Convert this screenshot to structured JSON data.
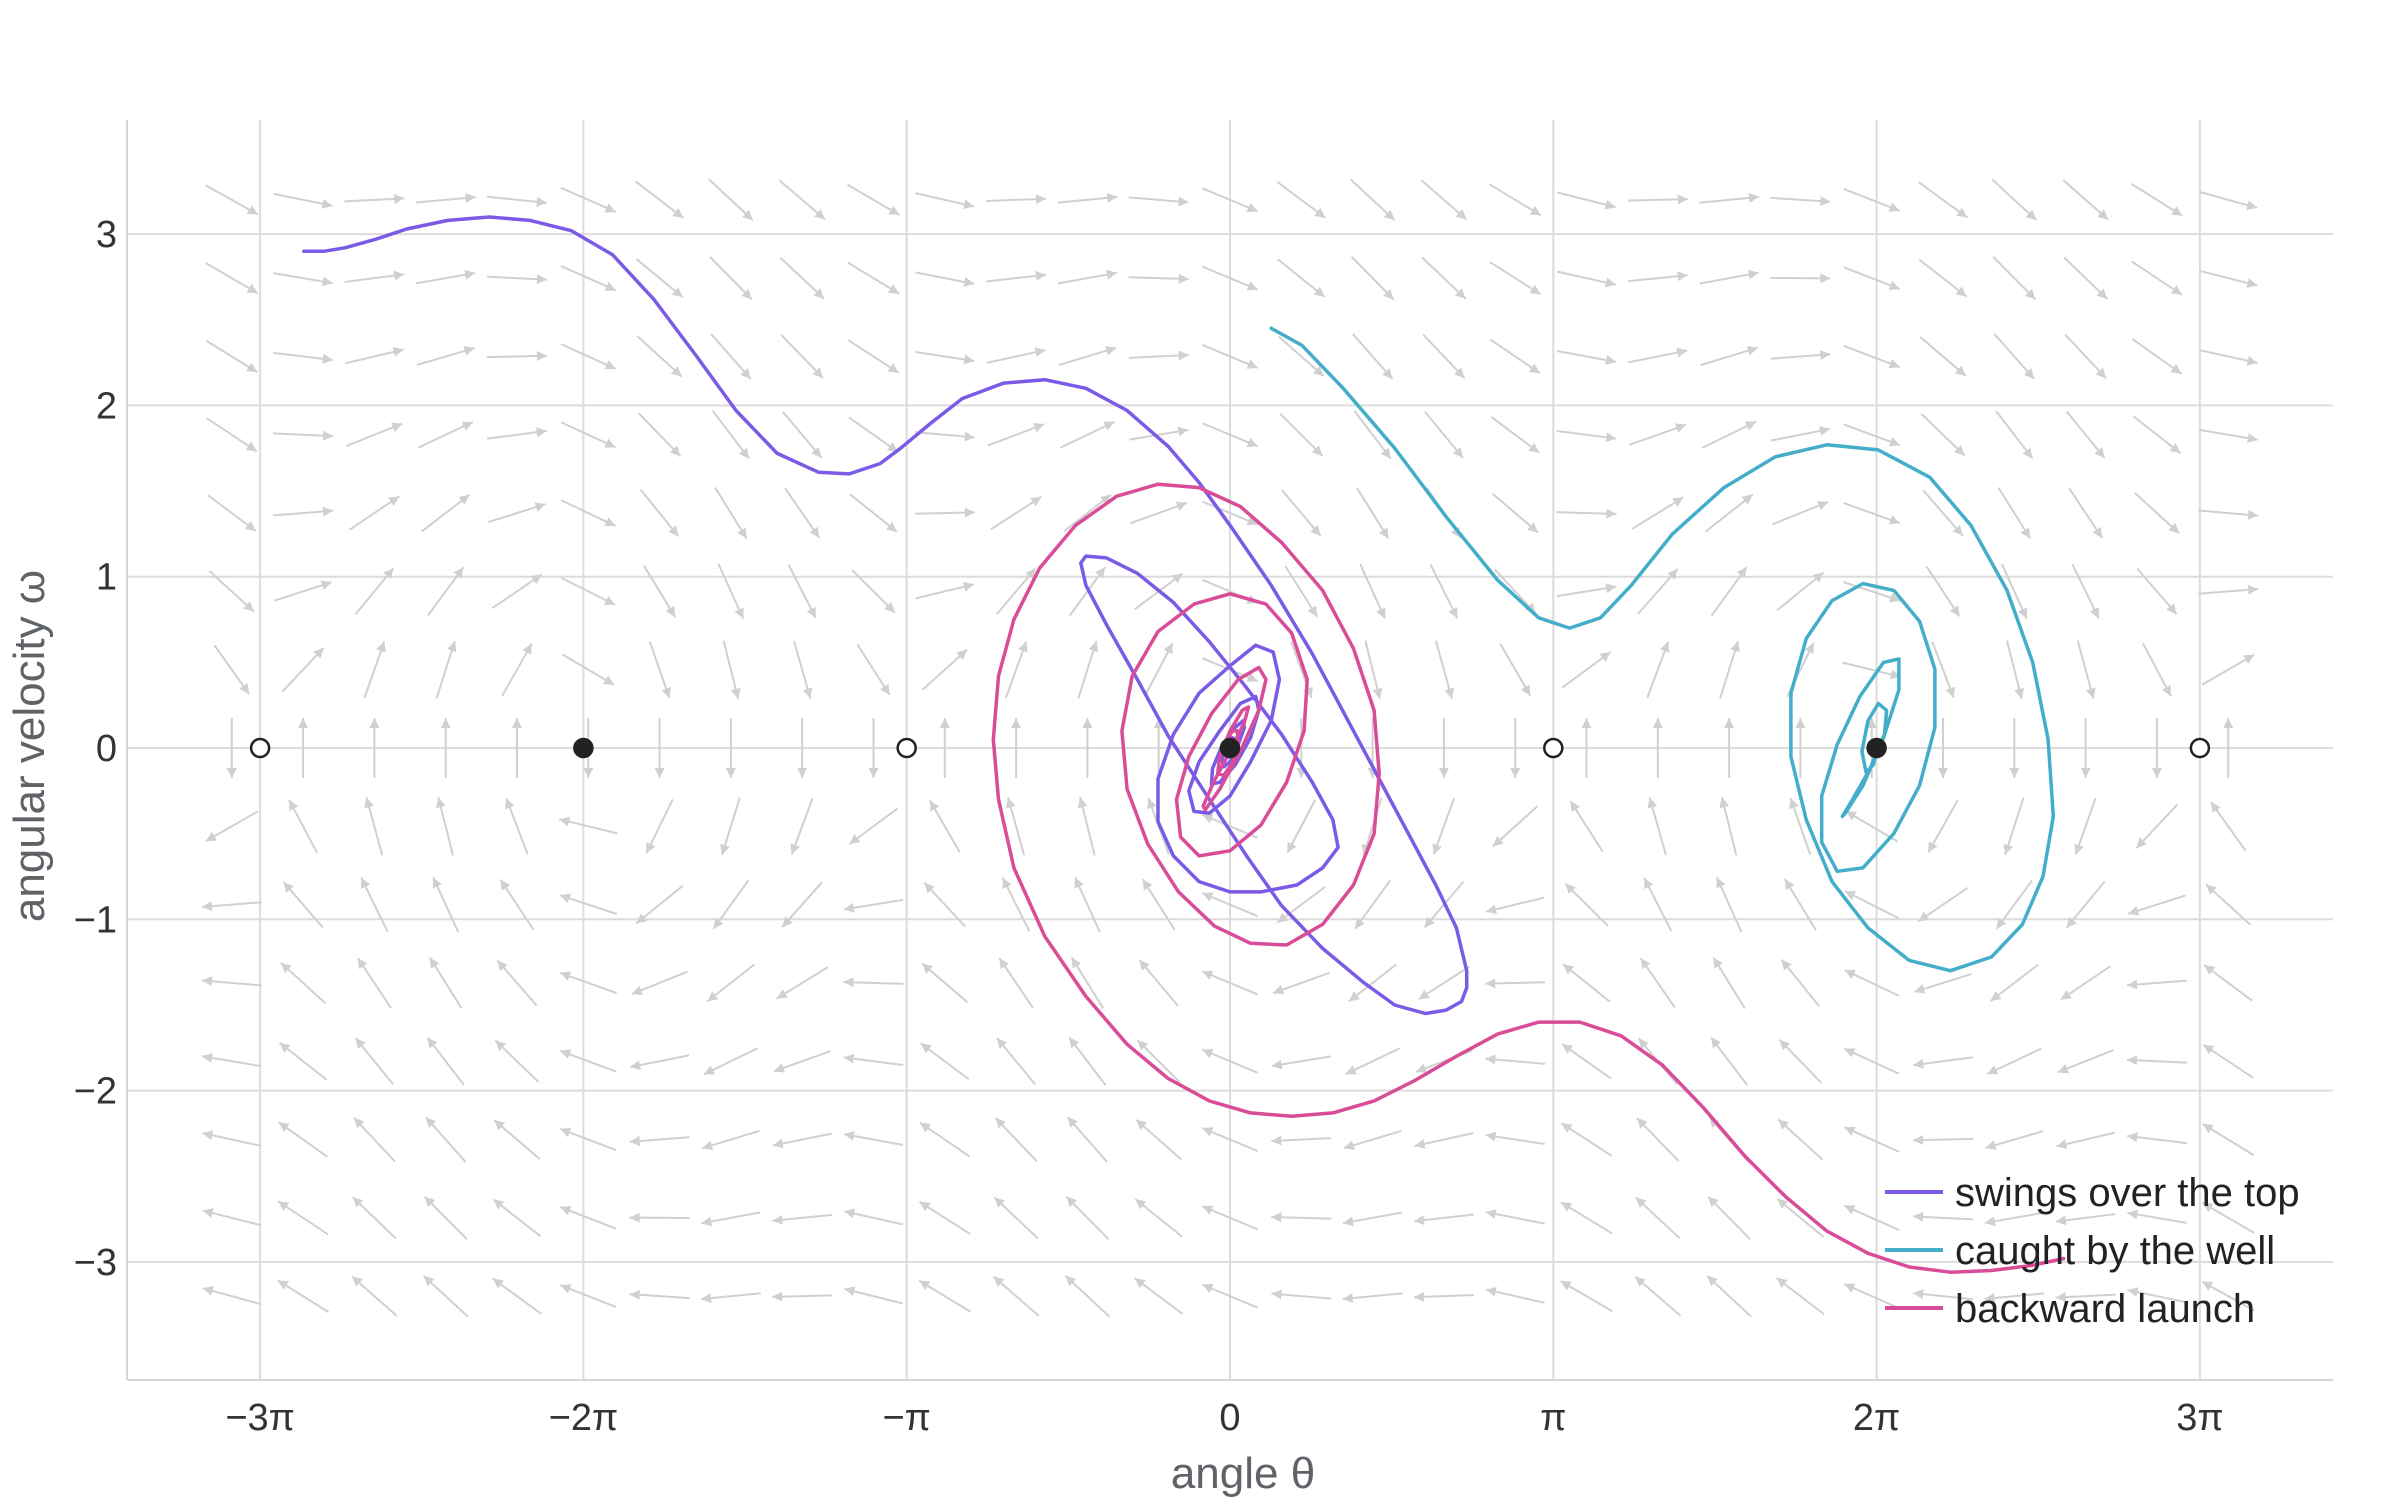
{
  "chart_data": {
    "type": "line",
    "xlabel": "angle θ",
    "ylabel": "angular velocity ω",
    "xlim": [
      -10.2,
      12.6
    ],
    "ylim": [
      -3.65,
      3.65
    ],
    "x_ticks": [
      {
        "value": -9.4248,
        "label": "−3π"
      },
      {
        "value": -6.2832,
        "label": "−2π"
      },
      {
        "value": -3.1416,
        "label": "−π"
      },
      {
        "value": 0,
        "label": "0"
      },
      {
        "value": 3.1416,
        "label": "π"
      },
      {
        "value": 6.2832,
        "label": "2π"
      },
      {
        "value": 9.4248,
        "label": "3π"
      }
    ],
    "y_ticks": [
      {
        "value": 3,
        "label": "3"
      },
      {
        "value": 2,
        "label": "2"
      },
      {
        "value": 1,
        "label": "1"
      },
      {
        "value": 0,
        "label": "0"
      },
      {
        "value": -1,
        "label": "−1"
      },
      {
        "value": -2,
        "label": "−2"
      },
      {
        "value": -3,
        "label": "−3"
      }
    ],
    "grid": true,
    "legend_position": "bottom-right",
    "vector_field": {
      "description": "direction field of the damped pendulum",
      "x_range": [
        -9.7,
        9.7
      ],
      "y_range": [
        -3.2,
        3.2
      ],
      "color": "#d0d0d0"
    },
    "equilibria": [
      {
        "x": -9.4248,
        "y": 0,
        "kind": "unstable"
      },
      {
        "x": -6.2832,
        "y": 0,
        "kind": "stable"
      },
      {
        "x": -3.1416,
        "y": 0,
        "kind": "unstable"
      },
      {
        "x": 0,
        "y": 0,
        "kind": "stable"
      },
      {
        "x": 3.1416,
        "y": 0,
        "kind": "unstable"
      },
      {
        "x": 6.2832,
        "y": 0,
        "kind": "stable"
      },
      {
        "x": 9.4248,
        "y": 0,
        "kind": "unstable"
      }
    ],
    "series": [
      {
        "name": "swings over the top",
        "color": "#7b5be6",
        "x": [
          -9.0,
          -8.8,
          -8.6,
          -8.3,
          -8.0,
          -7.6,
          -7.2,
          -6.8,
          -6.4,
          -6.0,
          -5.6,
          -5.2,
          -4.8,
          -4.4,
          -4.0,
          -3.7,
          -3.4,
          -3.2,
          -2.9,
          -2.6,
          -2.2,
          -1.8,
          -1.4,
          -1.0,
          -0.6,
          -0.3,
          0.0,
          0.4,
          0.8,
          1.2,
          1.6,
          2.0,
          2.2,
          2.3,
          2.3,
          2.25,
          2.1,
          1.9,
          1.6,
          1.3,
          0.9,
          0.5,
          0.15,
          -0.2,
          -0.6,
          -0.9,
          -1.2,
          -1.4,
          -1.45,
          -1.4,
          -1.2,
          -0.9,
          -0.55,
          -0.2,
          0.15,
          0.5,
          0.8,
          1.0,
          1.05,
          0.9,
          0.65,
          0.3,
          0.0,
          -0.3,
          -0.55,
          -0.7,
          -0.7,
          -0.55,
          -0.3,
          0.0,
          0.25,
          0.42,
          0.48,
          0.4,
          0.2,
          0.0,
          -0.2,
          -0.35,
          -0.4,
          -0.3,
          -0.1,
          0.1,
          0.25,
          0.28,
          0.2,
          0.05,
          -0.1,
          -0.18,
          -0.17,
          -0.08,
          0.05,
          0.13,
          0.14,
          0.08,
          0.0,
          -0.06,
          -0.08,
          -0.04,
          0.02,
          0.05,
          0.04,
          0.0
        ],
        "y": [
          2.9,
          2.9,
          2.92,
          2.97,
          3.03,
          3.08,
          3.1,
          3.08,
          3.02,
          2.88,
          2.62,
          2.3,
          1.97,
          1.72,
          1.61,
          1.6,
          1.66,
          1.75,
          1.9,
          2.04,
          2.13,
          2.15,
          2.1,
          1.97,
          1.76,
          1.55,
          1.3,
          0.95,
          0.55,
          0.1,
          -0.35,
          -0.8,
          -1.05,
          -1.3,
          -1.4,
          -1.48,
          -1.53,
          -1.55,
          -1.5,
          -1.37,
          -1.17,
          -0.92,
          -0.62,
          -0.3,
          0.07,
          0.4,
          0.72,
          0.95,
          1.08,
          1.12,
          1.11,
          1.02,
          0.85,
          0.62,
          0.36,
          0.08,
          -0.2,
          -0.42,
          -0.58,
          -0.7,
          -0.8,
          -0.84,
          -0.84,
          -0.78,
          -0.63,
          -0.43,
          -0.18,
          0.08,
          0.32,
          0.48,
          0.6,
          0.56,
          0.4,
          0.16,
          -0.08,
          -0.28,
          -0.38,
          -0.37,
          -0.25,
          -0.08,
          0.1,
          0.26,
          0.3,
          0.22,
          0.06,
          -0.1,
          -0.2,
          -0.21,
          -0.12,
          0.01,
          0.12,
          0.16,
          0.12,
          0.02,
          -0.08,
          -0.11,
          -0.07,
          0.01,
          0.06,
          0.05,
          0.02,
          0.0
        ]
      },
      {
        "name": "caught by the well",
        "color": "#44adc9",
        "x": [
          0.4,
          0.7,
          1.1,
          1.6,
          2.1,
          2.6,
          3.0,
          3.3,
          3.6,
          3.9,
          4.3,
          4.8,
          5.3,
          5.8,
          6.3,
          6.8,
          7.2,
          7.55,
          7.8,
          7.95,
          8.0,
          7.9,
          7.7,
          7.4,
          7.0,
          6.6,
          6.2,
          5.85,
          5.6,
          5.45,
          5.45,
          5.6,
          5.85,
          6.15,
          6.45,
          6.7,
          6.85,
          6.85,
          6.7,
          6.45,
          6.15,
          5.9,
          5.75,
          5.75,
          5.9,
          6.12,
          6.35,
          6.5,
          6.5,
          6.35,
          6.15,
          5.98,
          5.95,
          6.05,
          6.22,
          6.36,
          6.38,
          6.3,
          6.2,
          6.14,
          6.18,
          6.25,
          6.3,
          6.28
        ],
        "y": [
          2.45,
          2.35,
          2.1,
          1.75,
          1.35,
          0.98,
          0.76,
          0.7,
          0.76,
          0.95,
          1.25,
          1.52,
          1.7,
          1.77,
          1.74,
          1.58,
          1.3,
          0.92,
          0.5,
          0.05,
          -0.4,
          -0.75,
          -1.03,
          -1.22,
          -1.3,
          -1.24,
          -1.05,
          -0.78,
          -0.42,
          -0.05,
          0.32,
          0.64,
          0.86,
          0.96,
          0.92,
          0.74,
          0.46,
          0.12,
          -0.22,
          -0.5,
          -0.7,
          -0.72,
          -0.55,
          -0.28,
          0.02,
          0.3,
          0.5,
          0.52,
          0.34,
          0.06,
          -0.22,
          -0.38,
          -0.4,
          -0.3,
          -0.12,
          0.08,
          0.22,
          0.26,
          0.16,
          -0.02,
          -0.14,
          -0.1,
          0.02,
          0.0
        ]
      },
      {
        "name": "backward launch",
        "color": "#d94c98",
        "x": [
          8.1,
          7.8,
          7.4,
          7.0,
          6.6,
          6.2,
          5.8,
          5.4,
          5.0,
          4.6,
          4.2,
          3.8,
          3.4,
          3.0,
          2.6,
          2.2,
          1.8,
          1.4,
          1.0,
          0.6,
          0.2,
          -0.2,
          -0.6,
          -1.0,
          -1.4,
          -1.8,
          -2.1,
          -2.25,
          -2.3,
          -2.25,
          -2.1,
          -1.85,
          -1.5,
          -1.1,
          -0.7,
          -0.3,
          0.1,
          0.5,
          0.9,
          1.2,
          1.4,
          1.45,
          1.4,
          1.2,
          0.9,
          0.55,
          0.2,
          -0.15,
          -0.5,
          -0.8,
          -1.0,
          -1.05,
          -0.95,
          -0.7,
          -0.35,
          0.0,
          0.35,
          0.6,
          0.75,
          0.72,
          0.55,
          0.3,
          0.0,
          -0.3,
          -0.48,
          -0.52,
          -0.4,
          -0.18,
          0.08,
          0.28,
          0.35,
          0.28,
          0.1,
          -0.1,
          -0.24,
          -0.26,
          -0.16,
          0.0,
          0.14,
          0.18,
          0.12,
          0.0,
          -0.1,
          -0.12,
          -0.06,
          0.03,
          0.08,
          0.07,
          0.02,
          -0.03,
          -0.04,
          -0.01,
          0.02,
          0.0
        ],
        "y": [
          -2.98,
          -3.02,
          -3.05,
          -3.06,
          -3.03,
          -2.95,
          -2.82,
          -2.62,
          -2.38,
          -2.1,
          -1.85,
          -1.68,
          -1.6,
          -1.6,
          -1.67,
          -1.8,
          -1.94,
          -2.06,
          -2.13,
          -2.15,
          -2.13,
          -2.06,
          -1.93,
          -1.73,
          -1.45,
          -1.1,
          -0.7,
          -0.3,
          0.05,
          0.42,
          0.75,
          1.05,
          1.3,
          1.47,
          1.54,
          1.52,
          1.41,
          1.2,
          0.92,
          0.58,
          0.22,
          -0.15,
          -0.5,
          -0.8,
          -1.03,
          -1.15,
          -1.14,
          -1.04,
          -0.84,
          -0.56,
          -0.24,
          0.1,
          0.42,
          0.68,
          0.84,
          0.9,
          0.84,
          0.67,
          0.4,
          0.1,
          -0.2,
          -0.45,
          -0.6,
          -0.63,
          -0.52,
          -0.3,
          -0.05,
          0.2,
          0.4,
          0.47,
          0.4,
          0.22,
          -0.02,
          -0.24,
          -0.36,
          -0.34,
          -0.2,
          -0.02,
          0.15,
          0.24,
          0.22,
          0.1,
          -0.05,
          -0.15,
          -0.16,
          -0.08,
          0.03,
          0.1,
          0.1,
          0.04,
          -0.03,
          -0.05,
          -0.02,
          0.0
        ]
      }
    ]
  }
}
